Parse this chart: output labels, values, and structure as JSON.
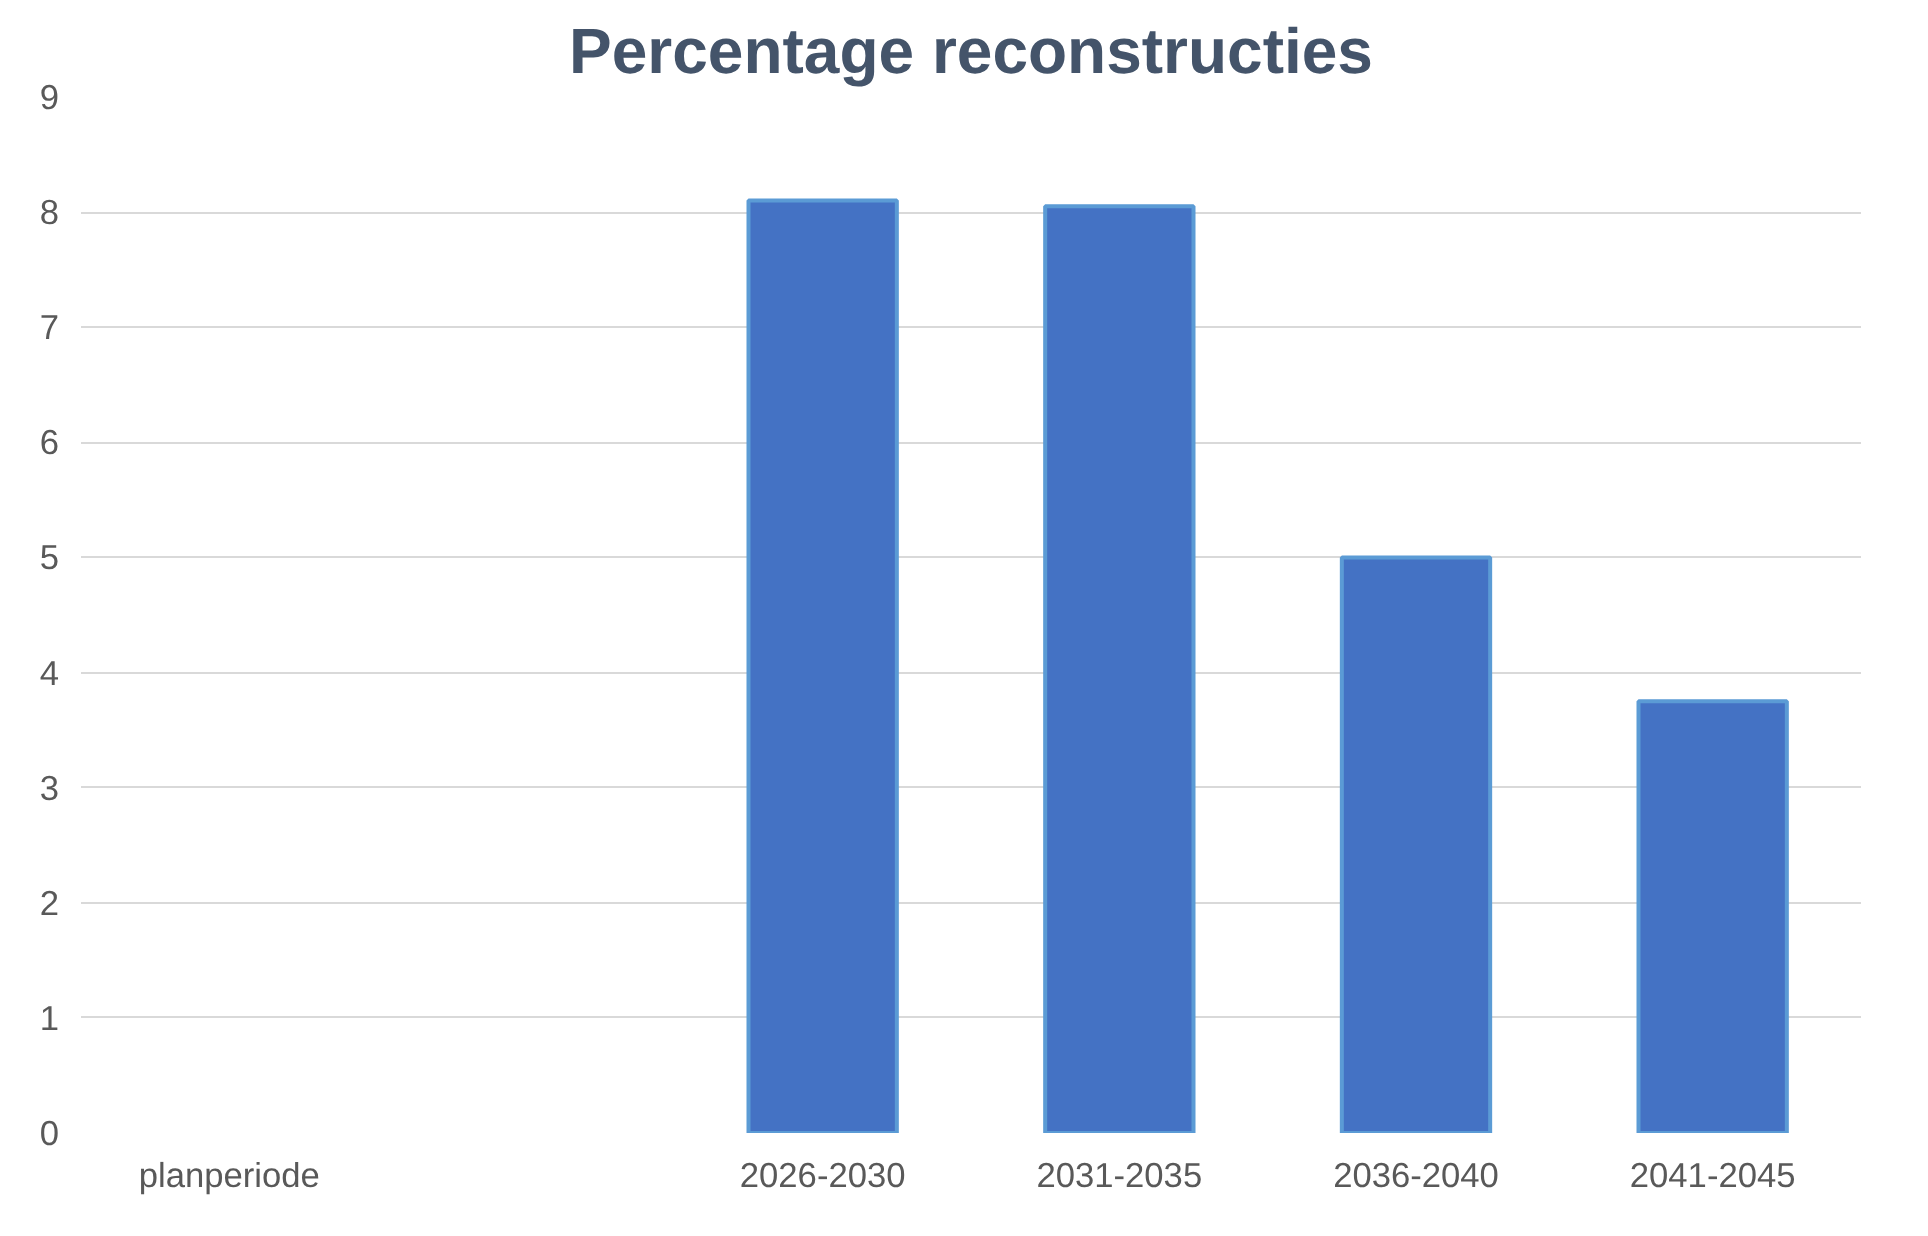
{
  "chart_data": {
    "type": "bar",
    "title": "Percentage reconstructies",
    "categories": [
      "planperiode",
      null,
      "2026-2030",
      "2031-2035",
      "2036-2040",
      "2041-2045"
    ],
    "values": [
      null,
      null,
      8.1,
      8.05,
      5.0,
      3.75
    ],
    "color": "#4472c4",
    "ylim": [
      0,
      9
    ],
    "yticks": [
      0,
      1,
      2,
      3,
      4,
      5,
      6,
      7,
      8,
      9
    ],
    "grid": "y"
  }
}
